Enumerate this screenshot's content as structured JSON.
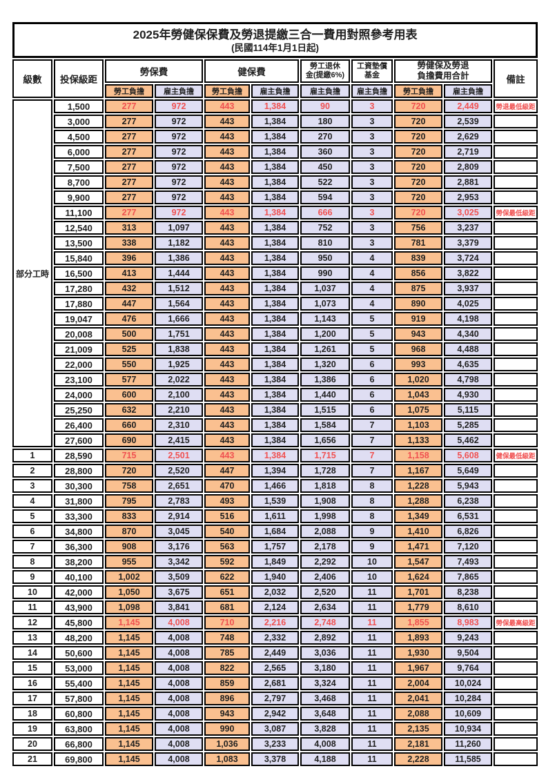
{
  "page": {
    "title": "2025年勞健保保費及勞退提繳三合一費用對照參考用表",
    "subtitle": "(民國114年1月1日起)"
  },
  "columns": {
    "level": "級數",
    "bracket": "投保級距",
    "labor_insurance": "勞保費",
    "health_insurance": "健保費",
    "pension_line1": "勞工退休",
    "pension_line2": "金(提繳6%)",
    "wage_fund_line1": "工資墊償",
    "wage_fund_line2": "基金",
    "total_line1": "勞健保及勞退",
    "total_line2": "負擔費用合計",
    "remark": "備註",
    "employee_share": "勞工負擔",
    "employer_share": "雇主負擔"
  },
  "part_time": {
    "label": "部分工時",
    "row_span": 23
  },
  "colors": {
    "employee_bg": "#FAC090",
    "employer_bg": "#DFDEF3",
    "highlight_text": "#F05050",
    "border": "#000000"
  },
  "rows": [
    {
      "level": null,
      "bracket": "1,500",
      "fees": [
        "277",
        "972",
        "443",
        "1,384",
        "90",
        "3",
        "720",
        "2,449"
      ],
      "remark": "勞退最低級距",
      "highlight": true
    },
    {
      "level": null,
      "bracket": "3,000",
      "fees": [
        "277",
        "972",
        "443",
        "1,384",
        "180",
        "3",
        "720",
        "2,539"
      ],
      "remark": "",
      "highlight": false
    },
    {
      "level": null,
      "bracket": "4,500",
      "fees": [
        "277",
        "972",
        "443",
        "1,384",
        "270",
        "3",
        "720",
        "2,629"
      ],
      "remark": "",
      "highlight": false
    },
    {
      "level": null,
      "bracket": "6,000",
      "fees": [
        "277",
        "972",
        "443",
        "1,384",
        "360",
        "3",
        "720",
        "2,719"
      ],
      "remark": "",
      "highlight": false
    },
    {
      "level": null,
      "bracket": "7,500",
      "fees": [
        "277",
        "972",
        "443",
        "1,384",
        "450",
        "3",
        "720",
        "2,809"
      ],
      "remark": "",
      "highlight": false
    },
    {
      "level": null,
      "bracket": "8,700",
      "fees": [
        "277",
        "972",
        "443",
        "1,384",
        "522",
        "3",
        "720",
        "2,881"
      ],
      "remark": "",
      "highlight": false
    },
    {
      "level": null,
      "bracket": "9,900",
      "fees": [
        "277",
        "972",
        "443",
        "1,384",
        "594",
        "3",
        "720",
        "2,953"
      ],
      "remark": "",
      "highlight": false
    },
    {
      "level": null,
      "bracket": "11,100",
      "fees": [
        "277",
        "972",
        "443",
        "1,384",
        "666",
        "3",
        "720",
        "3,025"
      ],
      "remark": "勞保最低級距",
      "highlight": true
    },
    {
      "level": null,
      "bracket": "12,540",
      "fees": [
        "313",
        "1,097",
        "443",
        "1,384",
        "752",
        "3",
        "756",
        "3,237"
      ],
      "remark": "",
      "highlight": false
    },
    {
      "level": null,
      "bracket": "13,500",
      "fees": [
        "338",
        "1,182",
        "443",
        "1,384",
        "810",
        "3",
        "781",
        "3,379"
      ],
      "remark": "",
      "highlight": false
    },
    {
      "level": null,
      "bracket": "15,840",
      "fees": [
        "396",
        "1,386",
        "443",
        "1,384",
        "950",
        "4",
        "839",
        "3,724"
      ],
      "remark": "",
      "highlight": false
    },
    {
      "level": null,
      "bracket": "16,500",
      "fees": [
        "413",
        "1,444",
        "443",
        "1,384",
        "990",
        "4",
        "856",
        "3,822"
      ],
      "remark": "",
      "highlight": false
    },
    {
      "level": null,
      "bracket": "17,280",
      "fees": [
        "432",
        "1,512",
        "443",
        "1,384",
        "1,037",
        "4",
        "875",
        "3,937"
      ],
      "remark": "",
      "highlight": false
    },
    {
      "level": null,
      "bracket": "17,880",
      "fees": [
        "447",
        "1,564",
        "443",
        "1,384",
        "1,073",
        "4",
        "890",
        "4,025"
      ],
      "remark": "",
      "highlight": false
    },
    {
      "level": null,
      "bracket": "19,047",
      "fees": [
        "476",
        "1,666",
        "443",
        "1,384",
        "1,143",
        "5",
        "919",
        "4,198"
      ],
      "remark": "",
      "highlight": false
    },
    {
      "level": null,
      "bracket": "20,008",
      "fees": [
        "500",
        "1,751",
        "443",
        "1,384",
        "1,200",
        "5",
        "943",
        "4,340"
      ],
      "remark": "",
      "highlight": false
    },
    {
      "level": null,
      "bracket": "21,009",
      "fees": [
        "525",
        "1,838",
        "443",
        "1,384",
        "1,261",
        "5",
        "968",
        "4,488"
      ],
      "remark": "",
      "highlight": false
    },
    {
      "level": null,
      "bracket": "22,000",
      "fees": [
        "550",
        "1,925",
        "443",
        "1,384",
        "1,320",
        "6",
        "993",
        "4,635"
      ],
      "remark": "",
      "highlight": false
    },
    {
      "level": null,
      "bracket": "23,100",
      "fees": [
        "577",
        "2,022",
        "443",
        "1,384",
        "1,386",
        "6",
        "1,020",
        "4,798"
      ],
      "remark": "",
      "highlight": false
    },
    {
      "level": null,
      "bracket": "24,000",
      "fees": [
        "600",
        "2,100",
        "443",
        "1,384",
        "1,440",
        "6",
        "1,043",
        "4,930"
      ],
      "remark": "",
      "highlight": false
    },
    {
      "level": null,
      "bracket": "25,250",
      "fees": [
        "632",
        "2,210",
        "443",
        "1,384",
        "1,515",
        "6",
        "1,075",
        "5,115"
      ],
      "remark": "",
      "highlight": false
    },
    {
      "level": null,
      "bracket": "26,400",
      "fees": [
        "660",
        "2,310",
        "443",
        "1,384",
        "1,584",
        "7",
        "1,103",
        "5,285"
      ],
      "remark": "",
      "highlight": false
    },
    {
      "level": null,
      "bracket": "27,600",
      "fees": [
        "690",
        "2,415",
        "443",
        "1,384",
        "1,656",
        "7",
        "1,133",
        "5,462"
      ],
      "remark": "",
      "highlight": false
    },
    {
      "level": "1",
      "bracket": "28,590",
      "fees": [
        "715",
        "2,501",
        "443",
        "1,384",
        "1,715",
        "7",
        "1,158",
        "5,608"
      ],
      "remark": "健保最低級距",
      "highlight": true
    },
    {
      "level": "2",
      "bracket": "28,800",
      "fees": [
        "720",
        "2,520",
        "447",
        "1,394",
        "1,728",
        "7",
        "1,167",
        "5,649"
      ],
      "remark": "",
      "highlight": false
    },
    {
      "level": "3",
      "bracket": "30,300",
      "fees": [
        "758",
        "2,651",
        "470",
        "1,466",
        "1,818",
        "8",
        "1,228",
        "5,943"
      ],
      "remark": "",
      "highlight": false
    },
    {
      "level": "4",
      "bracket": "31,800",
      "fees": [
        "795",
        "2,783",
        "493",
        "1,539",
        "1,908",
        "8",
        "1,288",
        "6,238"
      ],
      "remark": "",
      "highlight": false
    },
    {
      "level": "5",
      "bracket": "33,300",
      "fees": [
        "833",
        "2,914",
        "516",
        "1,611",
        "1,998",
        "8",
        "1,349",
        "6,531"
      ],
      "remark": "",
      "highlight": false
    },
    {
      "level": "6",
      "bracket": "34,800",
      "fees": [
        "870",
        "3,045",
        "540",
        "1,684",
        "2,088",
        "9",
        "1,410",
        "6,826"
      ],
      "remark": "",
      "highlight": false
    },
    {
      "level": "7",
      "bracket": "36,300",
      "fees": [
        "908",
        "3,176",
        "563",
        "1,757",
        "2,178",
        "9",
        "1,471",
        "7,120"
      ],
      "remark": "",
      "highlight": false
    },
    {
      "level": "8",
      "bracket": "38,200",
      "fees": [
        "955",
        "3,342",
        "592",
        "1,849",
        "2,292",
        "10",
        "1,547",
        "7,493"
      ],
      "remark": "",
      "highlight": false
    },
    {
      "level": "9",
      "bracket": "40,100",
      "fees": [
        "1,002",
        "3,509",
        "622",
        "1,940",
        "2,406",
        "10",
        "1,624",
        "7,865"
      ],
      "remark": "",
      "highlight": false
    },
    {
      "level": "10",
      "bracket": "42,000",
      "fees": [
        "1,050",
        "3,675",
        "651",
        "2,032",
        "2,520",
        "11",
        "1,701",
        "8,238"
      ],
      "remark": "",
      "highlight": false
    },
    {
      "level": "11",
      "bracket": "43,900",
      "fees": [
        "1,098",
        "3,841",
        "681",
        "2,124",
        "2,634",
        "11",
        "1,779",
        "8,610"
      ],
      "remark": "",
      "highlight": false
    },
    {
      "level": "12",
      "bracket": "45,800",
      "fees": [
        "1,145",
        "4,008",
        "710",
        "2,216",
        "2,748",
        "11",
        "1,855",
        "8,983"
      ],
      "remark": "勞保最高級距",
      "highlight": true
    },
    {
      "level": "13",
      "bracket": "48,200",
      "fees": [
        "1,145",
        "4,008",
        "748",
        "2,332",
        "2,892",
        "11",
        "1,893",
        "9,243"
      ],
      "remark": "",
      "highlight": false
    },
    {
      "level": "14",
      "bracket": "50,600",
      "fees": [
        "1,145",
        "4,008",
        "785",
        "2,449",
        "3,036",
        "11",
        "1,930",
        "9,504"
      ],
      "remark": "",
      "highlight": false
    },
    {
      "level": "15",
      "bracket": "53,000",
      "fees": [
        "1,145",
        "4,008",
        "822",
        "2,565",
        "3,180",
        "11",
        "1,967",
        "9,764"
      ],
      "remark": "",
      "highlight": false
    },
    {
      "level": "16",
      "bracket": "55,400",
      "fees": [
        "1,145",
        "4,008",
        "859",
        "2,681",
        "3,324",
        "11",
        "2,004",
        "10,024"
      ],
      "remark": "",
      "highlight": false
    },
    {
      "level": "17",
      "bracket": "57,800",
      "fees": [
        "1,145",
        "4,008",
        "896",
        "2,797",
        "3,468",
        "11",
        "2,041",
        "10,284"
      ],
      "remark": "",
      "highlight": false
    },
    {
      "level": "18",
      "bracket": "60,800",
      "fees": [
        "1,145",
        "4,008",
        "943",
        "2,942",
        "3,648",
        "11",
        "2,088",
        "10,609"
      ],
      "remark": "",
      "highlight": false
    },
    {
      "level": "19",
      "bracket": "63,800",
      "fees": [
        "1,145",
        "4,008",
        "990",
        "3,087",
        "3,828",
        "11",
        "2,135",
        "10,934"
      ],
      "remark": "",
      "highlight": false
    },
    {
      "level": "20",
      "bracket": "66,800",
      "fees": [
        "1,145",
        "4,008",
        "1,036",
        "3,233",
        "4,008",
        "11",
        "2,181",
        "11,260"
      ],
      "remark": "",
      "highlight": false
    },
    {
      "level": "21",
      "bracket": "69,800",
      "fees": [
        "1,145",
        "4,008",
        "1,083",
        "3,378",
        "4,188",
        "11",
        "2,228",
        "11,585"
      ],
      "remark": "",
      "highlight": false
    }
  ]
}
